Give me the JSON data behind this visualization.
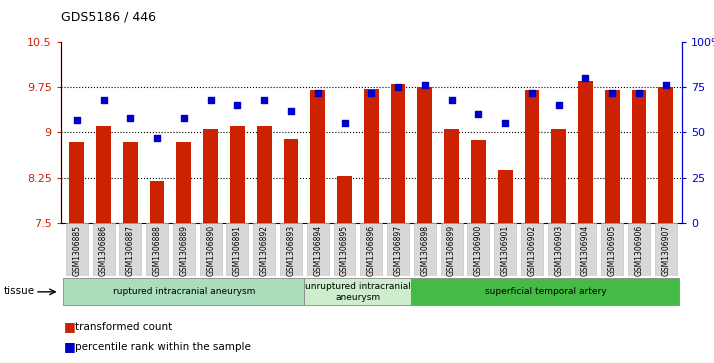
{
  "title": "GDS5186 / 446",
  "samples": [
    "GSM1306885",
    "GSM1306886",
    "GSM1306887",
    "GSM1306888",
    "GSM1306889",
    "GSM1306890",
    "GSM1306891",
    "GSM1306892",
    "GSM1306893",
    "GSM1306894",
    "GSM1306895",
    "GSM1306896",
    "GSM1306897",
    "GSM1306898",
    "GSM1306899",
    "GSM1306900",
    "GSM1306901",
    "GSM1306902",
    "GSM1306903",
    "GSM1306904",
    "GSM1306905",
    "GSM1306906",
    "GSM1306907"
  ],
  "bar_values": [
    8.85,
    9.1,
    8.85,
    8.2,
    8.85,
    9.05,
    9.1,
    9.1,
    8.9,
    9.7,
    8.28,
    9.72,
    9.8,
    9.75,
    9.05,
    8.88,
    8.38,
    9.7,
    9.05,
    9.85,
    9.7,
    9.7,
    9.76
  ],
  "dot_values": [
    57,
    68,
    58,
    47,
    58,
    68,
    65,
    68,
    62,
    72,
    55,
    72,
    75,
    76,
    68,
    60,
    55,
    72,
    65,
    80,
    72,
    72,
    76
  ],
  "ylim_left": [
    7.5,
    10.5
  ],
  "ylim_right": [
    0,
    100
  ],
  "yticks_left": [
    7.5,
    8.25,
    9.0,
    9.75,
    10.5
  ],
  "ytick_labels_left": [
    "7.5",
    "8.25",
    "9",
    "9.75",
    "10.5"
  ],
  "yticks_right": [
    0,
    25,
    50,
    75,
    100
  ],
  "ytick_labels_right": [
    "0",
    "25",
    "50",
    "75",
    "100%"
  ],
  "bar_color": "#cc2200",
  "dot_color": "#0000cc",
  "background_plot": "#ffffff",
  "grid_color": "#000000",
  "groups": [
    {
      "label": "ruptured intracranial aneurysm",
      "start": 0,
      "end": 9,
      "color": "#aaddbb"
    },
    {
      "label": "unruptured intracranial\naneurysm",
      "start": 9,
      "end": 13,
      "color": "#cceecc"
    },
    {
      "label": "superficial temporal artery",
      "start": 13,
      "end": 23,
      "color": "#44bb44"
    }
  ],
  "tissue_label": "tissue",
  "legend_bar_label": "transformed count",
  "legend_dot_label": "percentile rank within the sample",
  "dotted_lines": [
    8.25,
    9.0,
    9.75
  ]
}
